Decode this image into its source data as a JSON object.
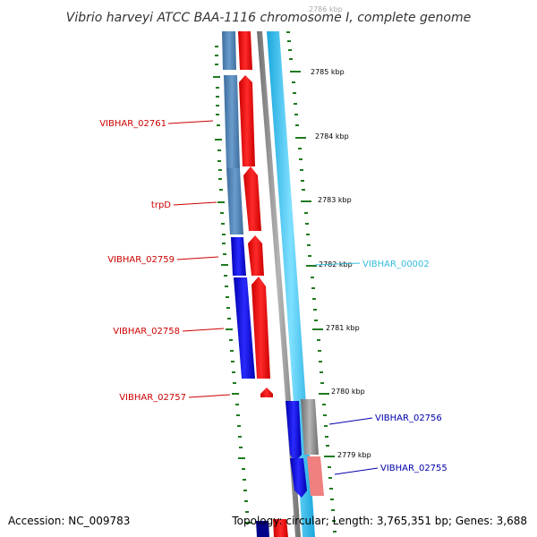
{
  "title": "Vibrio harveyi ATCC BAA-1116 chromosome I, complete genome",
  "footer": {
    "accession": "Accession: NC_009783",
    "topology": "Topology: circular; Length: 3,765,351 bp; Genes: 3,688"
  },
  "ticks": {
    "t2786": "2786 kbp",
    "t2785": "2785 kbp",
    "t2784": "2784 kbp",
    "t2783": "2783 kbp",
    "t2782": "2782 kbp",
    "t2781": "2781 kbp",
    "t2780": "2780 kbp",
    "t2779": "2779 kbp"
  },
  "genes": {
    "g02761": "VIBHAR_02761",
    "trpD": "trpD",
    "g02759": "VIBHAR_02759",
    "g02758": "VIBHAR_02758",
    "g02757": "VIBHAR_02757",
    "g00002": "VIBHAR_00002",
    "g02756": "VIBHAR_02756",
    "g02755": "VIBHAR_02755"
  },
  "colors": {
    "cds_red": "#ff0000",
    "steel_blue": "#4a7fb5",
    "blue": "#0000ee",
    "gray_backbone": "#8a8a8a",
    "cyan_ring": "#36c5f0",
    "tick_green": "#207a20",
    "gene_light_gray": "#c0c0c0",
    "gene_pink": "#f08080",
    "label_red": "#cc0000",
    "label_blue": "#0000aa",
    "label_cyan": "#33bbdd"
  }
}
